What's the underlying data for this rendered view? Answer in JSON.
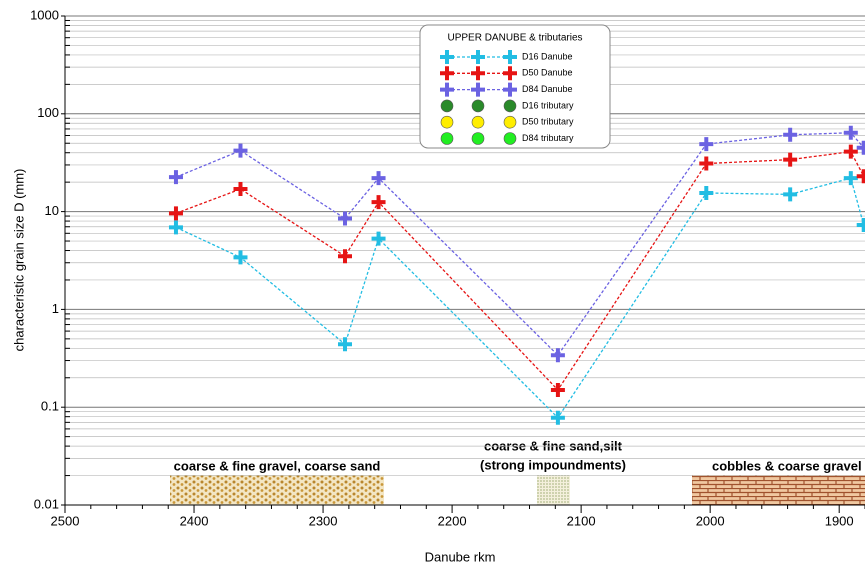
{
  "chart_data": {
    "type": "line",
    "xlabel": "Danube rkm",
    "ylabel": "characteristic grain size D (mm)",
    "x": [
      2414,
      2364,
      2283,
      2257,
      2118,
      2003,
      1938,
      1891,
      1881
    ],
    "xlim": [
      2500,
      1880
    ],
    "xticks": [
      2500,
      2400,
      2300,
      2200,
      2100,
      2000,
      1900
    ],
    "ylim": [
      0.01,
      1000
    ],
    "yticks": [
      0.01,
      0.1,
      1,
      10,
      100,
      1000
    ],
    "log_y": true,
    "grid": true,
    "legend_title": "UPPER DANUBE & tributaries",
    "series": [
      {
        "name": "D16 Danube",
        "color": "#22bde3",
        "marker": "plus",
        "line": true,
        "values": [
          6.9,
          3.4,
          0.44,
          5.3,
          0.078,
          15.5,
          15,
          22,
          7.3
        ]
      },
      {
        "name": "D50 Danube",
        "color": "#e61414",
        "marker": "plus",
        "line": true,
        "values": [
          9.6,
          17,
          3.5,
          12.5,
          0.15,
          31,
          34,
          41,
          23
        ]
      },
      {
        "name": "D84 Danube",
        "color": "#6b62e2",
        "marker": "plus",
        "line": true,
        "values": [
          22.5,
          42,
          8.5,
          22,
          0.34,
          49,
          61,
          64,
          45
        ]
      },
      {
        "name": "D16 tributary",
        "color": "#2a8a2a",
        "marker": "circle",
        "line": false,
        "values": [
          null,
          null,
          null,
          null,
          null,
          null,
          null,
          null,
          null
        ]
      },
      {
        "name": "D50 tributary",
        "color": "#ffee00",
        "marker": "circle",
        "line": false,
        "values": [
          null,
          null,
          null,
          null,
          null,
          null,
          null,
          null,
          null
        ]
      },
      {
        "name": "D84 tributary",
        "color": "#22ee22",
        "marker": "circle",
        "line": false,
        "values": [
          null,
          null,
          null,
          null,
          null,
          null,
          null,
          null,
          null
        ]
      }
    ],
    "annotations": [
      "coarse & fine gravel, coarse sand",
      "coarse & fine sand,silt",
      "(strong impoundments)",
      "cobbles & coarse gravel"
    ]
  }
}
